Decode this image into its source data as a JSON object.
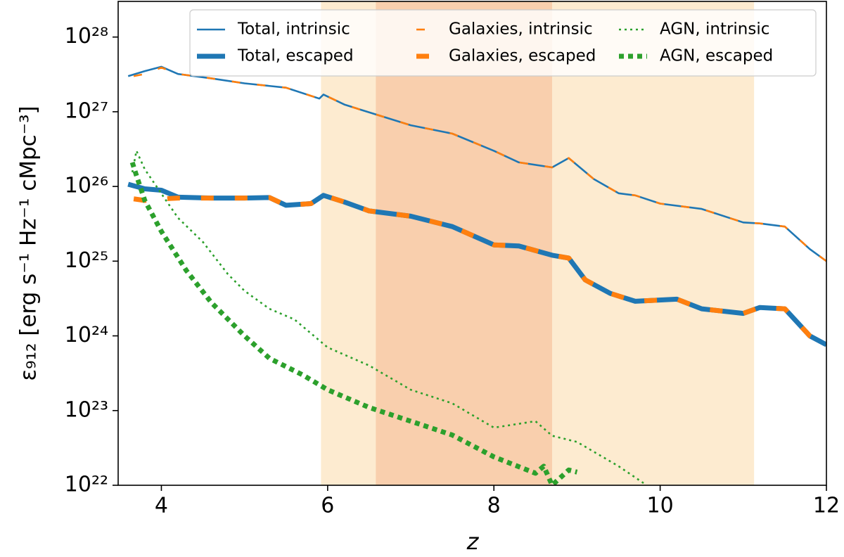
{
  "chart_data": {
    "type": "line",
    "xlabel": "z",
    "ylabel": "ε₉₁₂ [erg s⁻¹ Hz⁻¹ cMpc⁻³]",
    "xlim": [
      3.48,
      12
    ],
    "ylim": [
      1e+22,
      3e+28
    ],
    "yscale": "log",
    "xticks": [
      4,
      6,
      8,
      10,
      12
    ],
    "yticks": [
      {
        "value": 1e+22,
        "label": "10²²"
      },
      {
        "value": 1e+23,
        "label": "10²³"
      },
      {
        "value": 1e+24,
        "label": "10²⁴"
      },
      {
        "value": 1e+25,
        "label": "10²⁵"
      },
      {
        "value": 1e+26,
        "label": "10²⁶"
      },
      {
        "value": 1e+27,
        "label": "10²⁷"
      },
      {
        "value": 1e+28,
        "label": "10²⁸"
      }
    ],
    "legend": "upper right",
    "shaded_regions": [
      {
        "range": [
          5.92,
          11.13
        ],
        "color": "#fdebd0"
      },
      {
        "range": [
          6.58,
          8.7
        ],
        "color": "#f9cfad"
      }
    ],
    "series": [
      {
        "name": "Total, intrinsic",
        "color": "#1f77b4",
        "linestyle": "solid",
        "weight": "thin",
        "x": [
          3.6,
          3.8,
          4.0,
          4.2,
          4.6,
          5.0,
          5.5,
          5.9,
          5.95,
          6.2,
          6.5,
          7.0,
          7.5,
          8.0,
          8.3,
          8.7,
          8.9,
          9.2,
          9.5,
          9.7,
          10.0,
          10.5,
          11.0,
          11.2,
          11.5,
          11.8,
          12.0
        ],
        "values": [
          3e+27,
          3.5e+27,
          4e+27,
          3.2e+27,
          2.8e+27,
          2.4e+27,
          2.1e+27,
          1.5e+27,
          1.7e+27,
          1.25e+27,
          9.8e+26,
          6.6e+26,
          5.1e+26,
          3e+26,
          2.1e+26,
          1.8e+26,
          2.4e+26,
          1.26e+26,
          8.1e+25,
          7.6e+25,
          5.9e+25,
          5e+25,
          3.3e+25,
          3.2e+25,
          2.9e+25,
          1.45e+25,
          1e+25
        ]
      },
      {
        "name": "Total, escaped",
        "color": "#1f77b4",
        "linestyle": "solid",
        "weight": "thick",
        "x": [
          3.6,
          3.8,
          4.0,
          4.2,
          4.6,
          5.0,
          5.3,
          5.5,
          5.8,
          5.95,
          6.2,
          6.5,
          7.0,
          7.5,
          8.0,
          8.3,
          8.7,
          8.9,
          9.1,
          9.4,
          9.7,
          10.2,
          10.5,
          11.0,
          11.2,
          11.5,
          11.8,
          12.0
        ],
        "values": [
          1.07e+26,
          9.3e+25,
          8.9e+25,
          7.2e+25,
          7e+25,
          7e+25,
          7.1e+25,
          5.6e+25,
          5.9e+25,
          7.6e+25,
          6.2e+25,
          4.7e+25,
          4e+25,
          2.9e+25,
          1.65e+25,
          1.6e+25,
          1.2e+25,
          1.1e+25,
          5.6e+24,
          3.7e+24,
          2.9e+24,
          3.1e+24,
          2.3e+24,
          2e+24,
          2.4e+24,
          2.3e+24,
          1e+24,
          7.6e+23
        ]
      },
      {
        "name": "Galaxies, intrinsic",
        "color": "#ff7f0e",
        "linestyle": "dashed",
        "weight": "thin",
        "x": [
          3.6,
          3.8,
          4.0,
          4.2,
          4.6,
          5.0,
          5.5,
          5.9,
          5.95,
          6.2,
          6.5,
          7.0,
          7.5,
          8.0,
          8.3,
          8.7,
          8.9,
          9.2,
          9.5,
          9.7,
          10.0,
          10.5,
          11.0,
          11.2,
          11.5,
          11.8,
          12.0
        ],
        "values": [
          2.9e+27,
          3.2e+27,
          3.9e+27,
          3.2e+27,
          2.8e+27,
          2.4e+27,
          2.1e+27,
          1.5e+27,
          1.7e+27,
          1.25e+27,
          9.8e+26,
          6.6e+26,
          5.1e+26,
          3e+26,
          2.1e+26,
          1.8e+26,
          2.4e+26,
          1.26e+26,
          8.1e+25,
          7.6e+25,
          5.9e+25,
          5e+25,
          3.3e+25,
          3.2e+25,
          2.9e+25,
          1.45e+25,
          1e+25
        ]
      },
      {
        "name": "Galaxies, escaped",
        "color": "#ff7f0e",
        "linestyle": "dashed",
        "weight": "thick",
        "x": [
          3.6,
          3.8,
          4.0,
          4.2,
          4.6,
          5.0,
          5.3,
          5.5,
          5.8,
          5.95,
          6.2,
          6.5,
          7.0,
          7.5,
          8.0,
          8.3,
          8.7,
          8.9,
          9.1,
          9.4,
          9.7,
          10.2,
          10.5,
          11.0,
          11.2,
          11.5,
          11.8,
          12.0
        ],
        "values": [
          7e+25,
          6.5e+25,
          6.8e+25,
          7e+25,
          7e+25,
          7e+25,
          7.1e+25,
          5.6e+25,
          5.9e+25,
          7.6e+25,
          6.2e+25,
          4.7e+25,
          4e+25,
          2.9e+25,
          1.65e+25,
          1.6e+25,
          1.2e+25,
          1.1e+25,
          5.6e+24,
          3.7e+24,
          2.9e+24,
          3.1e+24,
          2.3e+24,
          2e+24,
          2.4e+24,
          2.3e+24,
          1e+24,
          7.6e+23
        ]
      },
      {
        "name": "AGN, intrinsic",
        "color": "#2ca02c",
        "linestyle": "dotted",
        "weight": "thin",
        "x": [
          3.65,
          3.7,
          3.8,
          4.0,
          4.2,
          4.5,
          4.8,
          5.0,
          5.3,
          5.6,
          6.0,
          6.5,
          7.0,
          7.5,
          8.0,
          8.5,
          8.7,
          9.0,
          9.5,
          9.8
        ],
        "values": [
          1.55e+26,
          3e+26,
          1.7e+26,
          8e+25,
          3.8e+25,
          1.8e+25,
          6.7e+24,
          4e+24,
          2.3e+24,
          1.66e+24,
          7e+23,
          4e+23,
          1.9e+23,
          1.25e+23,
          5.9e+22,
          7.2e+22,
          4.6e+22,
          3.8e+22,
          1.8e+22,
          1.07e+22
        ]
      },
      {
        "name": "AGN, escaped",
        "color": "#2ca02c",
        "linestyle": "dotted",
        "weight": "thick",
        "x": [
          3.65,
          3.7,
          3.8,
          4.0,
          4.3,
          4.6,
          5.0,
          5.3,
          5.7,
          6.0,
          6.5,
          7.0,
          7.5,
          8.0,
          8.5,
          8.6,
          8.7,
          8.9,
          9.0
        ],
        "values": [
          2.1e+26,
          1.4e+26,
          6.5e+25,
          2.5e+25,
          7.5e+24,
          2.8e+24,
          1e+24,
          5e+23,
          3e+23,
          1.9e+23,
          1.1e+23,
          7.2e+22,
          4.7e+22,
          2.4e+22,
          1.45e+22,
          1.8e+22,
          1e+22,
          1.6e+22,
          1.5e+22
        ]
      }
    ]
  }
}
